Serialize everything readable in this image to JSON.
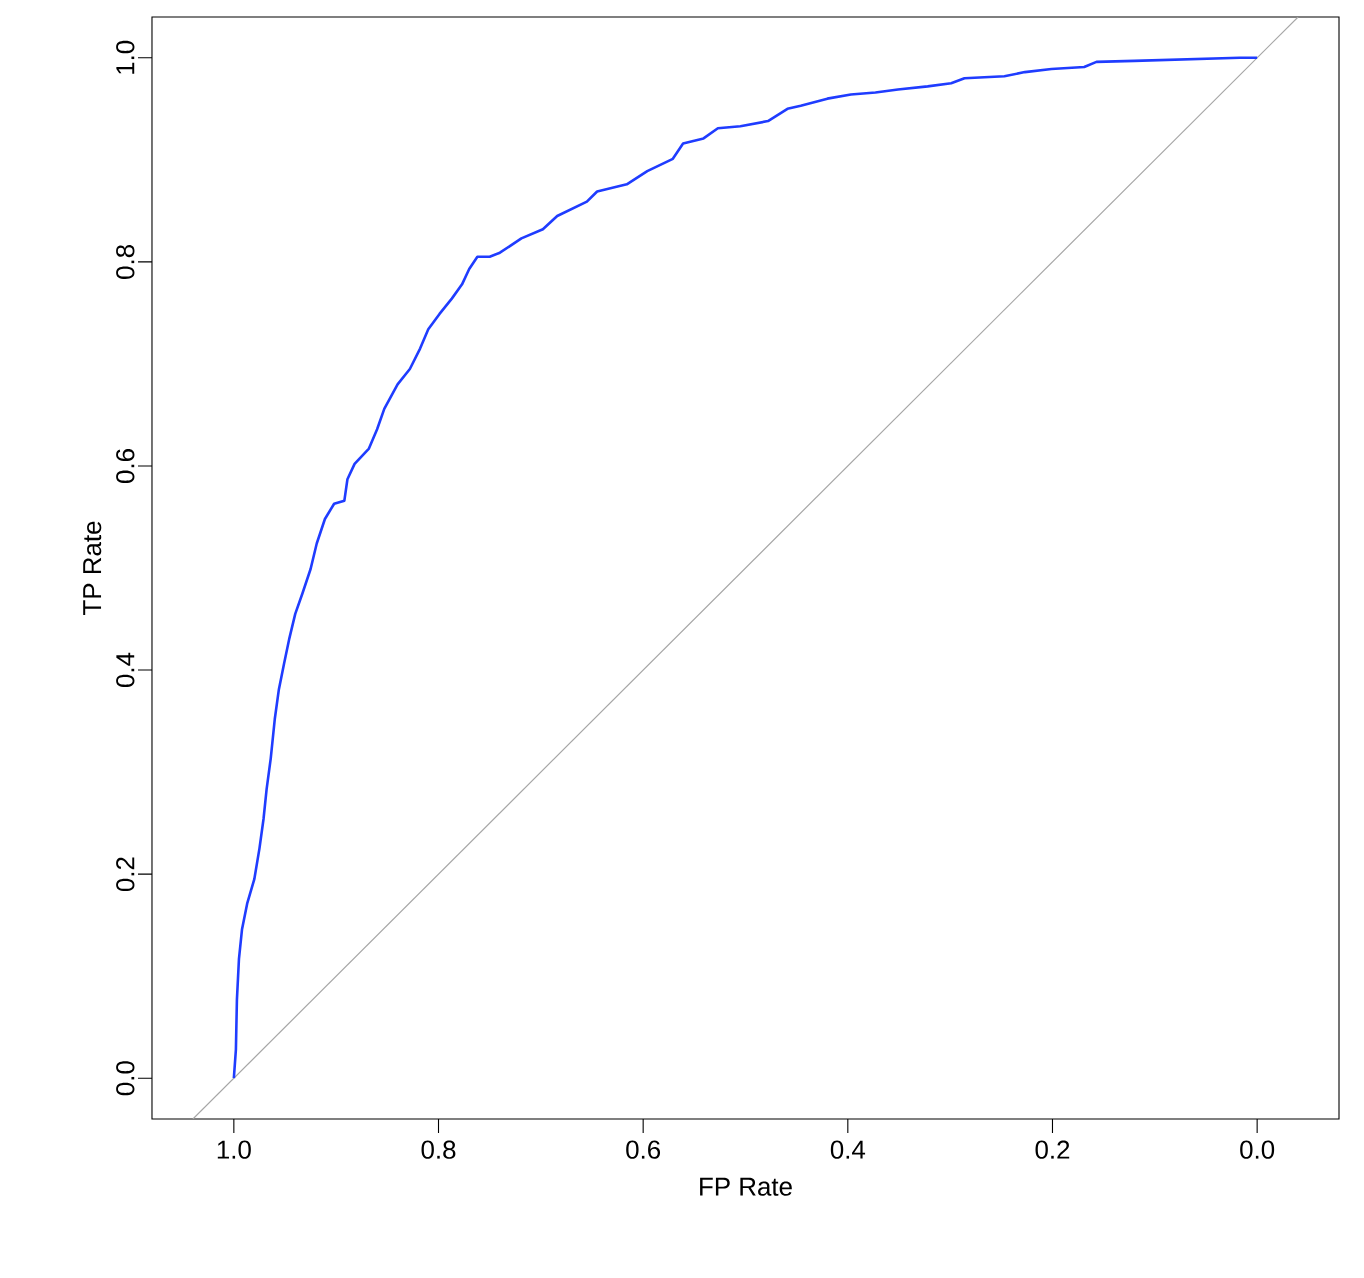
{
  "chart_data": {
    "type": "line",
    "xlabel": "FP Rate",
    "ylabel": "TP Rate",
    "xlim": [
      1.08,
      -0.08
    ],
    "ylim": [
      -0.04,
      1.04
    ],
    "xticks": [
      {
        "value": 1,
        "label": "1.0"
      },
      {
        "value": 0.8,
        "label": "0.8"
      },
      {
        "value": 0.6,
        "label": "0.6"
      },
      {
        "value": 0.4,
        "label": "0.4"
      },
      {
        "value": 0.2,
        "label": "0.2"
      },
      {
        "value": 0,
        "label": "0.0"
      }
    ],
    "yticks": [
      {
        "value": 0,
        "label": "0.0"
      },
      {
        "value": 0.2,
        "label": "0.2"
      },
      {
        "value": 0.4,
        "label": "0.4"
      },
      {
        "value": 0.6,
        "label": "0.6"
      },
      {
        "value": 0.8,
        "label": "0.8"
      },
      {
        "value": 1,
        "label": "1.0"
      }
    ],
    "series": [
      {
        "color": "#a6a6a6",
        "x": [
          1.04,
          -0.04
        ],
        "values": [
          -0.04,
          1.04
        ]
      },
      {
        "color": "#1f3cff",
        "x": [
          1.0,
          0.998,
          0.997,
          0.995,
          0.992,
          0.987,
          0.98,
          0.975,
          0.971,
          0.968,
          0.964,
          0.96,
          0.956,
          0.951,
          0.946,
          0.94,
          0.933,
          0.925,
          0.919,
          0.911,
          0.902,
          0.892,
          0.889,
          0.882,
          0.868,
          0.86,
          0.853,
          0.84,
          0.828,
          0.818,
          0.81,
          0.799,
          0.787,
          0.777,
          0.77,
          0.762,
          0.75,
          0.74,
          0.719,
          0.698,
          0.684,
          0.655,
          0.645,
          0.616,
          0.596,
          0.571,
          0.561,
          0.541,
          0.527,
          0.505,
          0.478,
          0.459,
          0.446,
          0.42,
          0.397,
          0.373,
          0.351,
          0.322,
          0.299,
          0.286,
          0.247,
          0.227,
          0.201,
          0.169,
          0.157,
          0.12,
          0.017,
          0.0
        ],
        "values": [
          0.0,
          0.028,
          0.077,
          0.117,
          0.146,
          0.171,
          0.195,
          0.225,
          0.254,
          0.283,
          0.313,
          0.352,
          0.381,
          0.406,
          0.43,
          0.455,
          0.475,
          0.499,
          0.524,
          0.548,
          0.563,
          0.566,
          0.587,
          0.602,
          0.617,
          0.636,
          0.656,
          0.68,
          0.695,
          0.715,
          0.734,
          0.749,
          0.764,
          0.778,
          0.793,
          0.805,
          0.805,
          0.809,
          0.823,
          0.832,
          0.845,
          0.859,
          0.869,
          0.876,
          0.889,
          0.901,
          0.916,
          0.921,
          0.931,
          0.933,
          0.938,
          0.95,
          0.953,
          0.96,
          0.964,
          0.966,
          0.969,
          0.972,
          0.975,
          0.98,
          0.982,
          0.986,
          0.989,
          0.991,
          0.996,
          0.997,
          1.0,
          1.0
        ]
      }
    ]
  }
}
